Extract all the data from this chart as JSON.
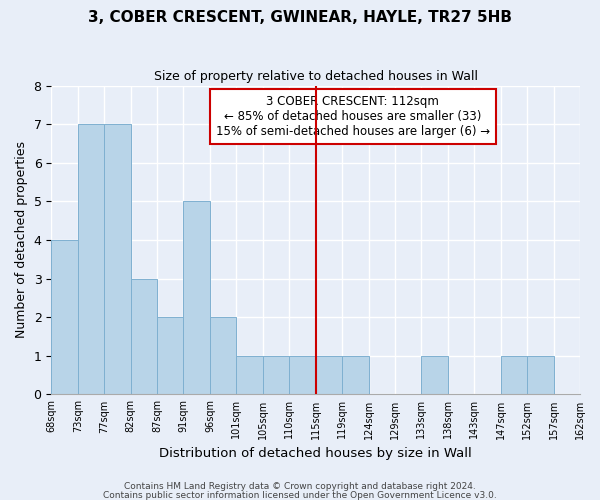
{
  "title": "3, COBER CRESCENT, GWINEAR, HAYLE, TR27 5HB",
  "subtitle": "Size of property relative to detached houses in Wall",
  "xlabel": "Distribution of detached houses by size in Wall",
  "ylabel": "Number of detached properties",
  "footer_line1": "Contains HM Land Registry data © Crown copyright and database right 2024.",
  "footer_line2": "Contains public sector information licensed under the Open Government Licence v3.0.",
  "bin_labels": [
    "68sqm",
    "73sqm",
    "77sqm",
    "82sqm",
    "87sqm",
    "91sqm",
    "96sqm",
    "101sqm",
    "105sqm",
    "110sqm",
    "115sqm",
    "119sqm",
    "124sqm",
    "129sqm",
    "133sqm",
    "138sqm",
    "143sqm",
    "147sqm",
    "152sqm",
    "157sqm",
    "162sqm"
  ],
  "bar_values": [
    4,
    7,
    7,
    3,
    2,
    5,
    2,
    1,
    1,
    1,
    1,
    1,
    0,
    0,
    1,
    0,
    0,
    1,
    1,
    0
  ],
  "bar_color": "#b8d4e8",
  "bar_edge_color": "#7fb0d0",
  "vline_x_index": 9.0,
  "vline_color": "#cc0000",
  "ylim": [
    0,
    8
  ],
  "yticks": [
    0,
    1,
    2,
    3,
    4,
    5,
    6,
    7,
    8
  ],
  "annotation_title": "3 COBER CRESCENT: 112sqm",
  "annotation_line2": "← 85% of detached houses are smaller (33)",
  "annotation_line3": "15% of semi-detached houses are larger (6) →",
  "background_color": "#e8eef8",
  "grid_color": "#d0d8e8"
}
